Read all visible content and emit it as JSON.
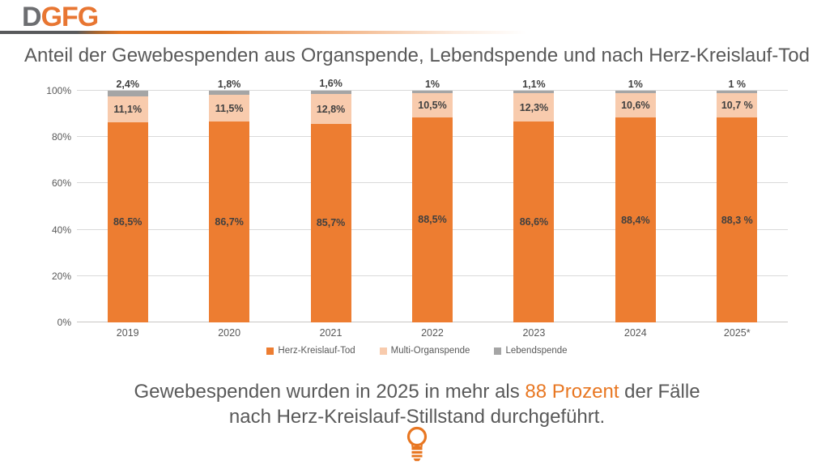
{
  "logo": {
    "part1": "D",
    "part2": "GFG"
  },
  "title": "Anteil der Gewebespenden aus Organspende, Lebendspende und nach Herz-Kreislauf-Tod",
  "colors": {
    "accent_orange": "#ED7D31",
    "light_orange": "#F8CBAD",
    "gray": "#A5A5A5",
    "text_gray": "#595959",
    "label_dark": "#404040",
    "logo_gray": "#6D6E71",
    "logo_orange": "#E87632",
    "highlight_orange": "#E87722"
  },
  "chart_data": {
    "type": "bar",
    "stacked": true,
    "title": "Anteil der Gewebespenden aus Organspende, Lebendspende und nach Herz-Kreislauf-Tod",
    "categories": [
      "2019",
      "2020",
      "2021",
      "2022",
      "2023",
      "2024",
      "2025*"
    ],
    "series": [
      {
        "name": "Herz-Kreislauf-Tod",
        "color": "#ED7D31",
        "values": [
          86.5,
          86.7,
          85.7,
          88.5,
          86.6,
          88.4,
          88.3
        ],
        "labels": [
          "86,5%",
          "86,7%",
          "85,7%",
          "88,5%",
          "86,6%",
          "88,4%",
          "88,3 %"
        ]
      },
      {
        "name": "Multi-Organspende",
        "color": "#F8CBAD",
        "values": [
          11.1,
          11.5,
          12.8,
          10.5,
          12.3,
          10.6,
          10.7
        ],
        "labels": [
          "11,1%",
          "11,5%",
          "12,8%",
          "10,5%",
          "12,3%",
          "10,6%",
          "10,7 %"
        ]
      },
      {
        "name": "Lebendspende",
        "color": "#A5A5A5",
        "values": [
          2.4,
          1.8,
          1.6,
          1.0,
          1.1,
          1.0,
          1.0
        ],
        "labels": [
          "2,4%",
          "1,8%",
          "1,6%",
          "1%",
          "1,1%",
          "1%",
          "1 %"
        ]
      }
    ],
    "y_ticks": [
      "0%",
      "20%",
      "40%",
      "60%",
      "80%",
      "100%"
    ],
    "ylim": [
      0,
      100
    ],
    "grid": true,
    "legend_position": "bottom"
  },
  "footer": {
    "line1_pre": "Gewebespenden wurden in 2025 in mehr als ",
    "line1_highlight": "88 Prozent",
    "line1_post": " der Fälle",
    "line2": "nach Herz-Kreislauf-Stillstand durchgeführt."
  },
  "icon": {
    "name": "lightbulb-icon",
    "color": "#E87722"
  }
}
